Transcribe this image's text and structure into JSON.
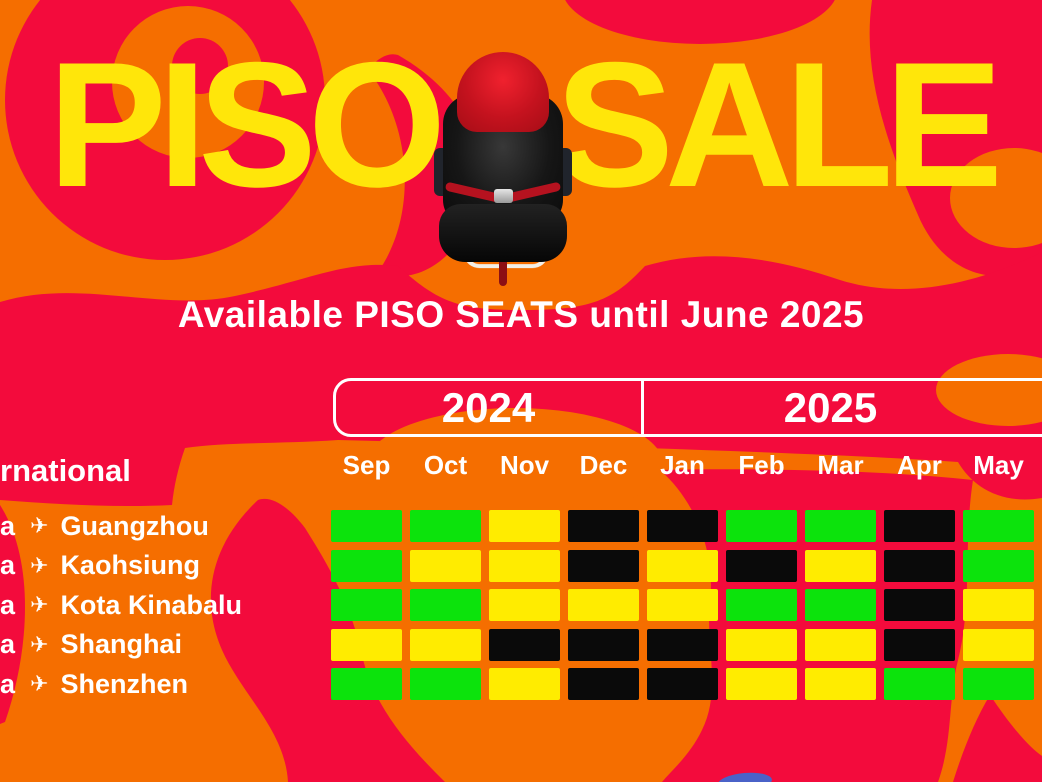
{
  "title": {
    "word1": "PISO",
    "word2": "SALE"
  },
  "subtitle": "Available PISO SEATS until June 2025",
  "section": {
    "heading_visible": "rnational"
  },
  "icons": {
    "plane": "✈"
  },
  "colors": {
    "orange": "#f56e00",
    "red": "#f30b3c",
    "yellow": "#ffe60a",
    "white": "#ffffff",
    "fragmentblue": "#4a62c8"
  },
  "chart_data": {
    "type": "heatmap",
    "title": "Available PISO SEATS until June 2025",
    "legend_position": "none",
    "grid": true,
    "x_groups": [
      {
        "label": "2024",
        "months": [
          "Sep",
          "Oct",
          "Nov",
          "Dec"
        ]
      },
      {
        "label": "2025",
        "months": [
          "Jan",
          "Feb",
          "Mar",
          "Apr",
          "May"
        ]
      }
    ],
    "categories": [
      "Sep",
      "Oct",
      "Nov",
      "Dec",
      "Jan",
      "Feb",
      "Mar",
      "Apr",
      "May"
    ],
    "row_prefix": "a",
    "rows": [
      {
        "city": "Guangzhou",
        "values": [
          "green",
          "green",
          "yellow",
          "black",
          "black",
          "green",
          "green",
          "black",
          "green"
        ]
      },
      {
        "city": "Kaohsiung",
        "values": [
          "green",
          "yellow",
          "yellow",
          "black",
          "yellow",
          "black",
          "yellow",
          "black",
          "green"
        ]
      },
      {
        "city": "Kota Kinabalu",
        "values": [
          "green",
          "green",
          "yellow",
          "yellow",
          "yellow",
          "green",
          "green",
          "black",
          "yellow"
        ]
      },
      {
        "city": "Shanghai",
        "values": [
          "yellow",
          "yellow",
          "black",
          "black",
          "black",
          "yellow",
          "yellow",
          "black",
          "yellow"
        ]
      },
      {
        "city": "Shenzhen",
        "values": [
          "green",
          "green",
          "yellow",
          "black",
          "black",
          "yellow",
          "yellow",
          "green",
          "green"
        ]
      }
    ],
    "cell_palette": {
      "green": "#0ce30c",
      "yellow": "#ffec00",
      "black": "#0a0a0a"
    }
  }
}
